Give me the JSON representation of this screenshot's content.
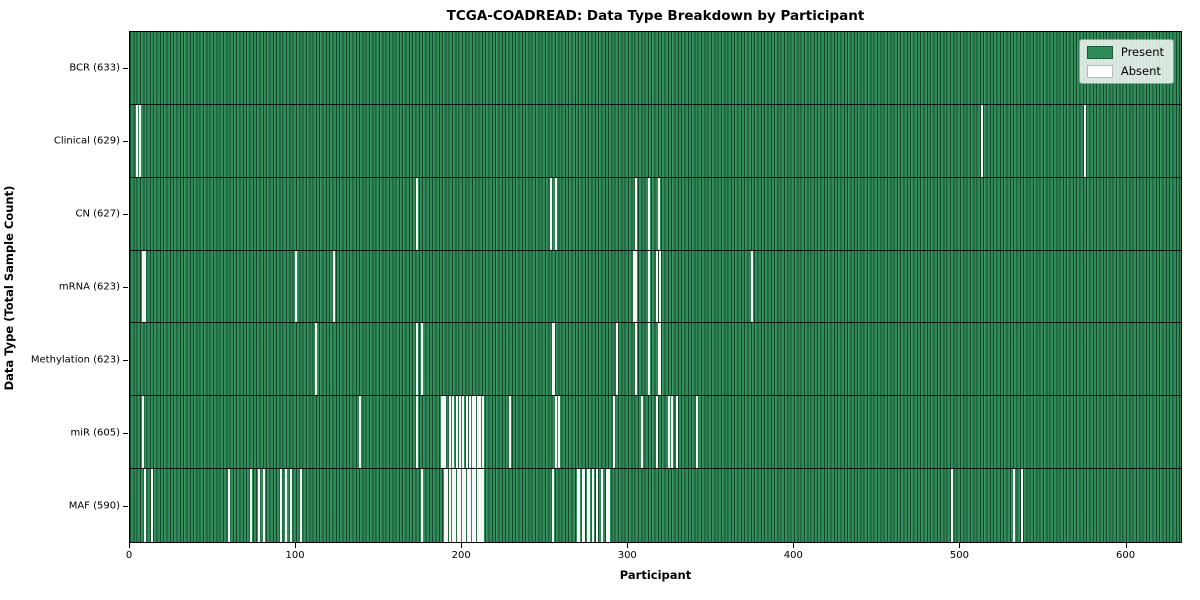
{
  "chart_data": {
    "type": "heatmap",
    "title": "TCGA-COADREAD: Data Type Breakdown by Participant",
    "xlabel": "Participant",
    "ylabel": "Data Type (Total Sample Count)",
    "n_participants": 633,
    "xlim": [
      0,
      634
    ],
    "x_ticks": [
      0,
      100,
      200,
      300,
      400,
      500,
      600
    ],
    "grid": false,
    "legend_position": "upper right",
    "colors": {
      "present": "#2e8b57",
      "absent": "#ffffff",
      "cell_edge": "#0d3622",
      "legend_border": "#9a9a9a"
    },
    "legend": {
      "entries": [
        {
          "label": "Present",
          "color": "#2e8b57"
        },
        {
          "label": "Absent",
          "color": "#ffffff"
        }
      ]
    },
    "rows": [
      {
        "label": "BCR (633)",
        "name": "BCR",
        "total": 633,
        "absent": []
      },
      {
        "label": "Clinical (629)",
        "name": "Clinical",
        "total": 629,
        "absent": [
          4,
          6,
          514,
          576
        ]
      },
      {
        "label": "CN (627)",
        "name": "CN",
        "total": 627,
        "absent": [
          173,
          254,
          257,
          305,
          313,
          319
        ]
      },
      {
        "label": "mRNA (623)",
        "name": "mRNA",
        "total": 623,
        "absent": [
          8,
          9,
          100,
          123,
          304,
          305,
          313,
          318,
          320,
          375
        ]
      },
      {
        "label": "Methylation (623)",
        "name": "Methylation",
        "total": 623,
        "absent": [
          112,
          173,
          176,
          255,
          256,
          294,
          305,
          313,
          319,
          320
        ]
      },
      {
        "label": "miR (605)",
        "name": "miR",
        "total": 605,
        "absent": [
          8,
          139,
          173,
          188,
          189,
          190,
          193,
          195,
          197,
          199,
          201,
          203,
          205,
          207,
          208,
          210,
          211,
          213,
          229,
          257,
          259,
          292,
          309,
          318,
          325,
          327,
          330,
          342
        ]
      },
      {
        "label": "MAF (590)",
        "name": "MAF",
        "total": 590,
        "absent": [
          9,
          13,
          60,
          73,
          78,
          81,
          91,
          94,
          97,
          103,
          176,
          190,
          191,
          193,
          195,
          196,
          198,
          199,
          201,
          202,
          204,
          205,
          207,
          208,
          210,
          211,
          212,
          213,
          255,
          270,
          271,
          273,
          274,
          276,
          277,
          279,
          282,
          285,
          288,
          289,
          496,
          533,
          538
        ]
      }
    ]
  }
}
